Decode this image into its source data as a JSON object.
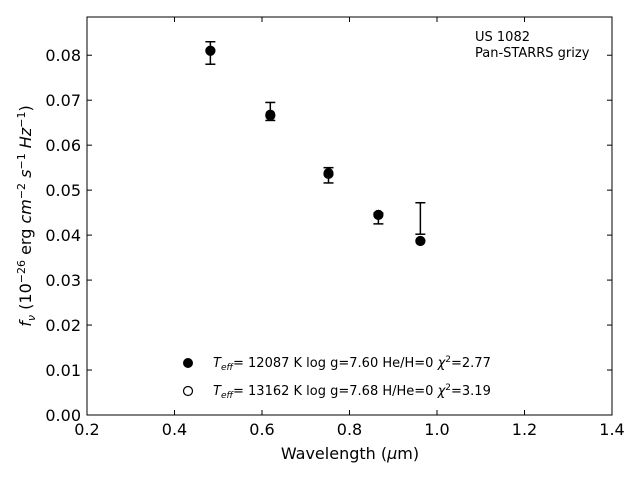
{
  "chart_data": {
    "type": "scatter",
    "xlabel": "Wavelength (μm)",
    "ylabel": "f_ν (10^-26 erg cm^-2 s^-1 Hz^-1)",
    "xlim": [
      0.2,
      1.4
    ],
    "ylim": [
      0.0,
      0.0885
    ],
    "x_ticks": [
      "0.2",
      "0.4",
      "0.6",
      "0.8",
      "1.0",
      "1.2",
      "1.4"
    ],
    "y_ticks": [
      "0.00",
      "0.01",
      "0.02",
      "0.03",
      "0.04",
      "0.05",
      "0.06",
      "0.07",
      "0.08"
    ],
    "grid": false,
    "annotation": [
      "US 1082",
      "Pan-STARRS grizy"
    ],
    "observed": {
      "x": [
        0.482,
        0.619,
        0.752,
        0.866,
        0.962
      ],
      "y": [
        0.0805,
        0.0675,
        0.0533,
        0.0447,
        0.0437
      ],
      "err_low": [
        0.0025,
        0.002,
        0.0017,
        0.0022,
        0.0035
      ],
      "err_high": [
        0.0025,
        0.002,
        0.0017,
        0.0002,
        0.0035
      ]
    },
    "series": [
      {
        "name": "T_eff= 12087 K  log g=7.60  He/H=0  χ²=2.77",
        "marker": "filled",
        "x": [
          0.482,
          0.619,
          0.752,
          0.866,
          0.962
        ],
        "y": [
          0.081,
          0.0668,
          0.0538,
          0.0445,
          0.0387
        ]
      },
      {
        "name": "T_eff= 13162 K  log g=7.68  H/He=0  χ²=3.19",
        "marker": "open",
        "x": [
          0.482,
          0.619,
          0.752,
          0.866,
          0.962
        ],
        "y": [
          0.081,
          0.0666,
          0.0536,
          0.0445,
          0.0387
        ]
      }
    ],
    "legend_placement": "lower-center"
  }
}
